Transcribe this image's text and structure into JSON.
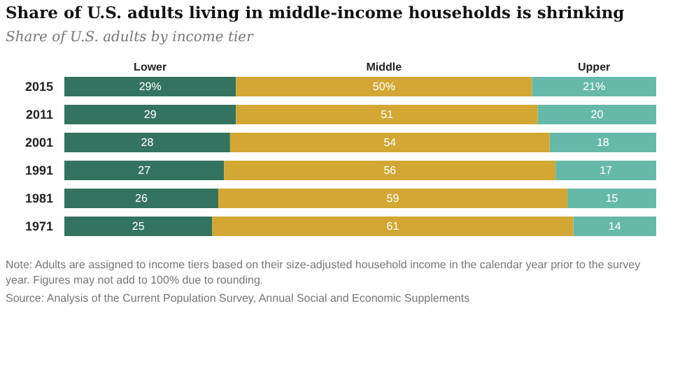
{
  "chart_data": {
    "type": "bar",
    "orientation": "horizontal",
    "stacked": true,
    "title": "Share of U.S. adults living in middle-income households is shrinking",
    "subtitle": "Share of U.S. adults by income tier",
    "categories": [
      "2015",
      "2011",
      "2001",
      "1991",
      "1981",
      "1971"
    ],
    "series": [
      {
        "name": "Lower",
        "color": "#33735f",
        "values": [
          29,
          29,
          28,
          27,
          26,
          25
        ],
        "value_labels": [
          "29%",
          "29",
          "28",
          "27",
          "26",
          "25"
        ]
      },
      {
        "name": "Middle",
        "color": "#d2a733",
        "values": [
          50,
          51,
          54,
          56,
          59,
          61
        ],
        "value_labels": [
          "50%",
          "51",
          "54",
          "56",
          "59",
          "61"
        ]
      },
      {
        "name": "Upper",
        "color": "#66b9a9",
        "values": [
          21,
          20,
          18,
          17,
          15,
          14
        ],
        "value_labels": [
          "21%",
          "20",
          "18",
          "17",
          "15",
          "14"
        ]
      }
    ],
    "annotations": [
      "Note: Adults are assigned to income tiers based on their size-adjusted household income in the calendar year prior to the survey year. Figures may not add to 100% due to rounding.",
      "Source: Analysis of the Current Population Survey, Annual Social and Economic Supplements"
    ]
  }
}
